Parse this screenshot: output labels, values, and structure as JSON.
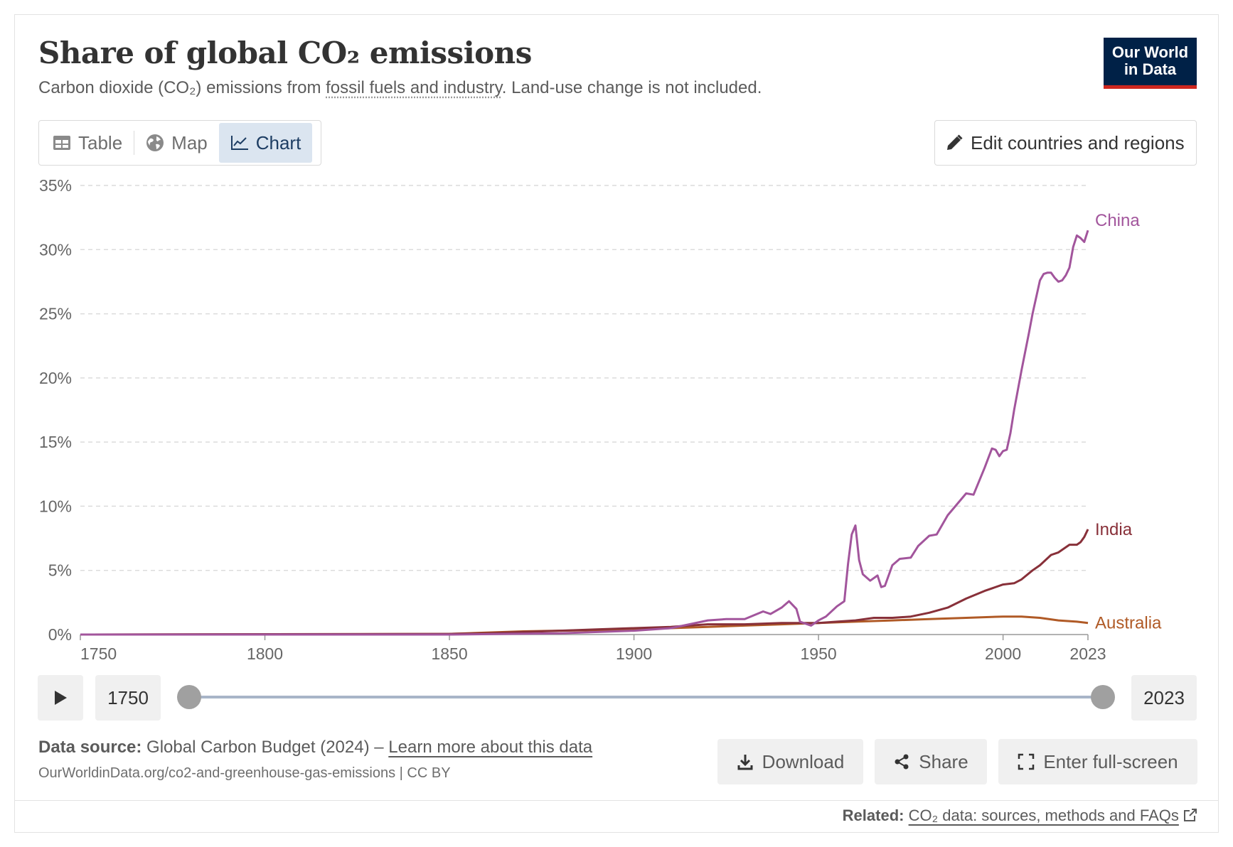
{
  "header": {
    "title": "Share of global CO₂ emissions",
    "subtitle_pre": "Carbon dioxide (CO₂) emissions from ",
    "subtitle_link": "fossil fuels and industry",
    "subtitle_post": ". Land-use change is not included.",
    "logo_line1": "Our World",
    "logo_line2": "in Data"
  },
  "tabs": [
    {
      "label": "Table",
      "icon": "table-icon",
      "active": false
    },
    {
      "label": "Map",
      "icon": "globe-icon",
      "active": false
    },
    {
      "label": "Chart",
      "icon": "line-chart-icon",
      "active": true
    }
  ],
  "edit_button": {
    "label": "Edit countries and regions",
    "icon": "pencil-icon"
  },
  "timeline": {
    "start_year": "1750",
    "end_year": "2023",
    "play_icon": "play-icon"
  },
  "footer": {
    "source_label": "Data source:",
    "source_text": " Global Carbon Budget (2024) – ",
    "learn_more": "Learn more about this data",
    "url": "OurWorldinData.org/co2-and-greenhouse-gas-emissions | CC BY",
    "download": "Download",
    "share": "Share",
    "fullscreen": "Enter full-screen",
    "related_label": "Related:",
    "related_link": "CO₂ data: sources, methods and FAQs"
  },
  "chart_data": {
    "type": "line",
    "title": "Share of global CO₂ emissions",
    "xlim": [
      1750,
      2023
    ],
    "ylim": [
      0,
      35
    ],
    "x_ticks": [
      "1750",
      "1800",
      "1850",
      "1900",
      "1950",
      "2000",
      "2023"
    ],
    "x_tick_values": [
      1750,
      1800,
      1850,
      1900,
      1950,
      2000,
      2023
    ],
    "y_ticks": [
      "0%",
      "5%",
      "10%",
      "15%",
      "20%",
      "25%",
      "30%",
      "35%"
    ],
    "y_tick_values": [
      0,
      5,
      10,
      15,
      20,
      25,
      30,
      35
    ],
    "grid": "horizontal dashed",
    "legend": "line-end labels",
    "series": [
      {
        "name": "China",
        "color": "#a2559c",
        "points": [
          [
            1750,
            0
          ],
          [
            1850,
            0
          ],
          [
            1880,
            0.1
          ],
          [
            1900,
            0.3
          ],
          [
            1910,
            0.5
          ],
          [
            1915,
            0.8
          ],
          [
            1920,
            1.1
          ],
          [
            1925,
            1.2
          ],
          [
            1930,
            1.2
          ],
          [
            1935,
            1.8
          ],
          [
            1937,
            1.6
          ],
          [
            1940,
            2.1
          ],
          [
            1942,
            2.6
          ],
          [
            1944,
            2.0
          ],
          [
            1945,
            1.0
          ],
          [
            1948,
            0.7
          ],
          [
            1950,
            1.1
          ],
          [
            1952,
            1.4
          ],
          [
            1955,
            2.2
          ],
          [
            1957,
            2.6
          ],
          [
            1958,
            5.5
          ],
          [
            1959,
            7.8
          ],
          [
            1960,
            8.5
          ],
          [
            1961,
            5.8
          ],
          [
            1962,
            4.7
          ],
          [
            1964,
            4.2
          ],
          [
            1966,
            4.6
          ],
          [
            1967,
            3.7
          ],
          [
            1968,
            3.8
          ],
          [
            1970,
            5.4
          ],
          [
            1972,
            5.9
          ],
          [
            1975,
            6.0
          ],
          [
            1977,
            6.9
          ],
          [
            1980,
            7.7
          ],
          [
            1982,
            7.8
          ],
          [
            1985,
            9.3
          ],
          [
            1990,
            11.0
          ],
          [
            1992,
            10.9
          ],
          [
            1995,
            13.0
          ],
          [
            1997,
            14.5
          ],
          [
            1998,
            14.4
          ],
          [
            1999,
            13.9
          ],
          [
            2000,
            14.3
          ],
          [
            2001,
            14.4
          ],
          [
            2002,
            15.7
          ],
          [
            2003,
            17.5
          ],
          [
            2005,
            20.6
          ],
          [
            2007,
            23.5
          ],
          [
            2008,
            25.0
          ],
          [
            2010,
            27.6
          ],
          [
            2011,
            28.1
          ],
          [
            2012,
            28.2
          ],
          [
            2013,
            28.2
          ],
          [
            2014,
            27.8
          ],
          [
            2015,
            27.5
          ],
          [
            2016,
            27.6
          ],
          [
            2017,
            28.0
          ],
          [
            2018,
            28.6
          ],
          [
            2019,
            30.2
          ],
          [
            2020,
            31.1
          ],
          [
            2021,
            30.9
          ],
          [
            2022,
            30.6
          ],
          [
            2023,
            31.5
          ]
        ]
      },
      {
        "name": "India",
        "color": "#883039",
        "points": [
          [
            1750,
            0
          ],
          [
            1850,
            0.05
          ],
          [
            1860,
            0.1
          ],
          [
            1870,
            0.2
          ],
          [
            1880,
            0.3
          ],
          [
            1890,
            0.4
          ],
          [
            1900,
            0.5
          ],
          [
            1910,
            0.6
          ],
          [
            1915,
            0.7
          ],
          [
            1920,
            0.8
          ],
          [
            1930,
            0.8
          ],
          [
            1940,
            0.9
          ],
          [
            1950,
            0.9
          ],
          [
            1955,
            1.0
          ],
          [
            1960,
            1.1
          ],
          [
            1965,
            1.3
          ],
          [
            1970,
            1.3
          ],
          [
            1975,
            1.4
          ],
          [
            1980,
            1.7
          ],
          [
            1985,
            2.1
          ],
          [
            1990,
            2.8
          ],
          [
            1995,
            3.4
          ],
          [
            2000,
            3.9
          ],
          [
            2003,
            4.0
          ],
          [
            2005,
            4.3
          ],
          [
            2008,
            5.0
          ],
          [
            2010,
            5.4
          ],
          [
            2013,
            6.2
          ],
          [
            2015,
            6.4
          ],
          [
            2018,
            7.0
          ],
          [
            2020,
            7.0
          ],
          [
            2021,
            7.2
          ],
          [
            2022,
            7.6
          ],
          [
            2023,
            8.2
          ]
        ]
      },
      {
        "name": "Australia",
        "color": "#b05a26",
        "points": [
          [
            1750,
            0
          ],
          [
            1850,
            0.05
          ],
          [
            1860,
            0.15
          ],
          [
            1870,
            0.25
          ],
          [
            1880,
            0.3
          ],
          [
            1890,
            0.35
          ],
          [
            1900,
            0.4
          ],
          [
            1910,
            0.5
          ],
          [
            1920,
            0.6
          ],
          [
            1930,
            0.7
          ],
          [
            1940,
            0.8
          ],
          [
            1950,
            0.9
          ],
          [
            1960,
            1.0
          ],
          [
            1970,
            1.1
          ],
          [
            1980,
            1.2
          ],
          [
            1990,
            1.3
          ],
          [
            2000,
            1.4
          ],
          [
            2005,
            1.4
          ],
          [
            2010,
            1.3
          ],
          [
            2015,
            1.1
          ],
          [
            2020,
            1.0
          ],
          [
            2023,
            0.9
          ]
        ]
      }
    ]
  }
}
